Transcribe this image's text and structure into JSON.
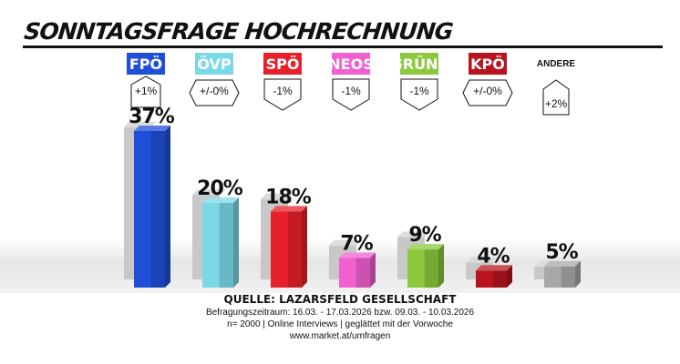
{
  "title": "SONNTAGSFRAGE HOCHRECHNUNG",
  "chart_data": {
    "type": "bar",
    "categories": [
      "FPÖ",
      "ÖVP",
      "SPÖ",
      "NEOS",
      "GRÜNE",
      "KPÖ",
      "ANDERE"
    ],
    "values": [
      37,
      20,
      18,
      7,
      9,
      4,
      5
    ],
    "value_labels": [
      "37%",
      "20%",
      "18%",
      "7%",
      "9%",
      "4%",
      "5%"
    ],
    "changes": [
      "+1%",
      "+/-0%",
      "-1%",
      "-1%",
      "-1%",
      "+/-0%",
      "+2%"
    ],
    "change_direction": [
      "up",
      "none",
      "down",
      "down",
      "down",
      "none",
      "up"
    ],
    "previous_values": [
      36,
      20,
      19,
      8,
      10,
      4,
      3
    ],
    "colors": [
      "#1f4fd8",
      "#7ad8e8",
      "#e8202a",
      "#f060d0",
      "#8cc83c",
      "#b8141e",
      "#a8a8a8"
    ],
    "previous_color": "#c8c8c8",
    "ylim": [
      0,
      40
    ]
  },
  "footer": {
    "source": "QUELLE: LAZARSFELD GESELLSCHAFT",
    "line1": "Befragungszeitraum:  16.03. - 17.03.2026  bzw. 09.03. - 10.03.2026",
    "line2": "n= 2000 | Online Interviews | geglättet mit der Vorwoche",
    "line3": "www.market.at/umfragen"
  }
}
